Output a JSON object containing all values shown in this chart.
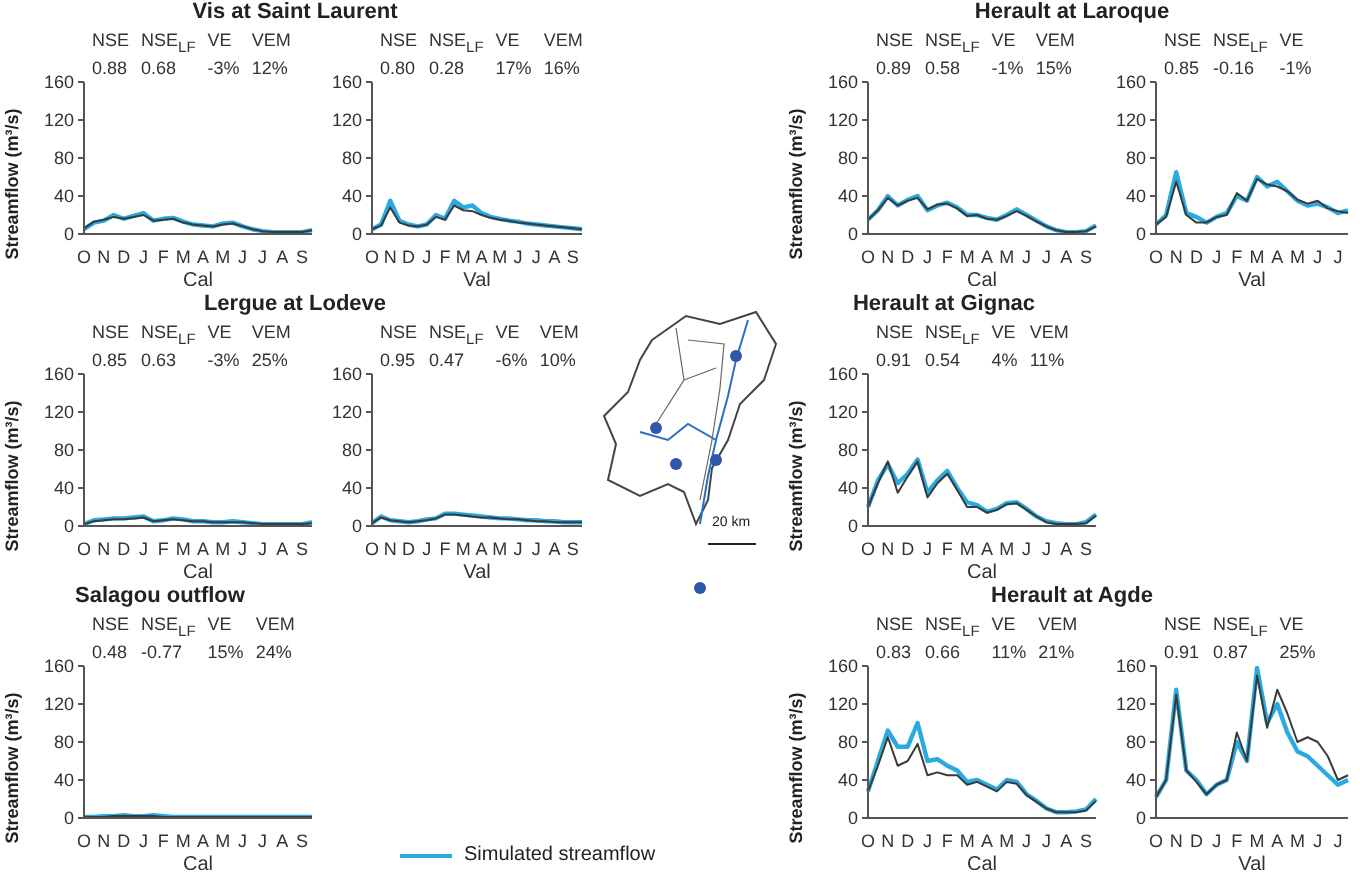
{
  "chart_data": [
    {
      "type": "line",
      "title": "Vis at Saint Laurent",
      "xlabel": "Cal",
      "ylabel": "Streamflow (m³/s)",
      "annotations": [
        "NSE",
        "NSE$_{LF}$",
        "VE",
        "VEM",
        "0.88",
        "0.68",
        "-3%",
        "12%"
      ],
      "categories": [
        "O",
        null,
        "N",
        null,
        "D",
        null,
        "J",
        null,
        "F",
        null,
        "M",
        null,
        "A",
        null,
        "M",
        null,
        "J",
        null,
        "J",
        null,
        "A",
        null,
        "S",
        null
      ],
      "ylim": [
        0,
        160
      ],
      "yticks": [
        0,
        40,
        80,
        120,
        160
      ],
      "series": [
        {
          "color": "#29abe2",
          "values": [
            5,
            12,
            14,
            20,
            16,
            19,
            22,
            14,
            16,
            17,
            13,
            10,
            9,
            8,
            11,
            12,
            8,
            5,
            3,
            2,
            2,
            2,
            2,
            4
          ]
        },
        {
          "color": "#3a3a3a",
          "values": [
            6,
            13,
            15,
            18,
            16,
            18,
            20,
            14,
            15,
            16,
            12,
            10,
            9,
            8,
            10,
            11,
            8,
            5,
            3,
            2,
            2,
            2,
            2,
            4
          ]
        }
      ]
    },
    {
      "type": "line",
      "xlabel": "Val",
      "annotations": [
        "NSE",
        "NSE$_{LF}$",
        "VE",
        "VEM",
        "0.80",
        "0.28",
        "17%",
        "16%"
      ],
      "categories": [
        "O",
        null,
        "N",
        null,
        "D",
        null,
        "J",
        null,
        "F",
        null,
        "M",
        null,
        "A",
        null,
        "M",
        null,
        "J",
        null,
        "J",
        null,
        "A",
        null,
        "S",
        null
      ],
      "ylim": [
        0,
        160
      ],
      "yticks": [
        0,
        40,
        80,
        120,
        160
      ],
      "series": [
        {
          "color": "#29abe2",
          "values": [
            5,
            10,
            35,
            14,
            10,
            8,
            10,
            20,
            16,
            35,
            28,
            30,
            22,
            18,
            16,
            14,
            13,
            11,
            10,
            9,
            8,
            7,
            6,
            5
          ]
        },
        {
          "color": "#3a3a3a",
          "values": [
            5,
            9,
            28,
            12,
            9,
            8,
            10,
            18,
            15,
            30,
            25,
            24,
            20,
            17,
            15,
            14,
            12,
            11,
            10,
            9,
            8,
            7,
            6,
            5
          ]
        }
      ]
    },
    {
      "type": "line",
      "title": "Herault at Laroque",
      "xlabel": "Cal",
      "ylabel": "Streamflow (m³/s)",
      "annotations": [
        "NSE",
        "NSE$_{LF}$",
        "VE",
        "VEM",
        "0.89",
        "0.58",
        "-1%",
        "15%"
      ],
      "categories": [
        "O",
        null,
        "N",
        null,
        "D",
        null,
        "J",
        null,
        "F",
        null,
        "M",
        null,
        "A",
        null,
        "M",
        null,
        "J",
        null,
        "J",
        null,
        "A",
        null,
        "S",
        null
      ],
      "ylim": [
        0,
        160
      ],
      "yticks": [
        0,
        40,
        80,
        120,
        160
      ],
      "series": [
        {
          "color": "#29abe2",
          "values": [
            15,
            25,
            40,
            30,
            36,
            40,
            25,
            30,
            33,
            28,
            20,
            20,
            17,
            15,
            20,
            26,
            20,
            14,
            8,
            4,
            2,
            2,
            3,
            9
          ]
        },
        {
          "color": "#3a3a3a",
          "values": [
            15,
            25,
            38,
            30,
            35,
            38,
            26,
            31,
            32,
            27,
            19,
            20,
            16,
            15,
            19,
            24,
            19,
            13,
            8,
            4,
            2,
            2,
            3,
            8
          ]
        }
      ]
    },
    {
      "type": "line",
      "xlabel": "Val",
      "annotations": [
        "NSE",
        "NSE$_{LF}$",
        "VE",
        "0.85",
        "-0.16",
        "-1%"
      ],
      "categories": [
        "O",
        null,
        "N",
        null,
        "D",
        null,
        "J",
        null,
        "F",
        null,
        "M",
        null,
        "A",
        null,
        "M",
        null,
        "J",
        null,
        "J",
        null
      ],
      "ylim": [
        0,
        160
      ],
      "yticks": [
        0,
        40,
        80,
        120,
        160
      ],
      "series": [
        {
          "color": "#29abe2",
          "values": [
            10,
            20,
            65,
            22,
            18,
            12,
            18,
            22,
            40,
            35,
            60,
            50,
            55,
            45,
            35,
            30,
            32,
            28,
            22,
            25
          ]
        },
        {
          "color": "#3a3a3a",
          "values": [
            10,
            18,
            55,
            20,
            12,
            12,
            18,
            20,
            43,
            35,
            58,
            52,
            50,
            45,
            36,
            32,
            35,
            27,
            24,
            22
          ]
        }
      ]
    },
    {
      "type": "line",
      "title": "Lergue at Lodeve",
      "xlabel": "Cal",
      "ylabel": "Streamflow (m³/s)",
      "annotations": [
        "NSE",
        "NSE$_{LF}$",
        "VE",
        "VEM",
        "0.85",
        "0.63",
        "-3%",
        "25%"
      ],
      "categories": [
        "O",
        null,
        "N",
        null,
        "D",
        null,
        "J",
        null,
        "F",
        null,
        "M",
        null,
        "A",
        null,
        "M",
        null,
        "J",
        null,
        "J",
        null,
        "A",
        null,
        "S",
        null
      ],
      "ylim": [
        0,
        160
      ],
      "yticks": [
        0,
        40,
        80,
        120,
        160
      ],
      "series": [
        {
          "color": "#29abe2",
          "values": [
            2,
            6,
            7,
            8,
            8,
            9,
            10,
            5,
            6,
            8,
            7,
            5,
            5,
            4,
            4,
            5,
            4,
            3,
            2,
            2,
            2,
            2,
            2,
            4
          ]
        },
        {
          "color": "#3a3a3a",
          "values": [
            2,
            5,
            6,
            7,
            7,
            8,
            9,
            5,
            6,
            7,
            6,
            5,
            5,
            4,
            4,
            4,
            4,
            3,
            2,
            2,
            2,
            2,
            2,
            3
          ]
        }
      ]
    },
    {
      "type": "line",
      "xlabel": "Val",
      "annotations": [
        "NSE",
        "NSE$_{LF}$",
        "VE",
        "VEM",
        "0.95",
        "0.47",
        "-6%",
        "10%"
      ],
      "categories": [
        "O",
        null,
        "N",
        null,
        "D",
        null,
        "J",
        null,
        "F",
        null,
        "M",
        null,
        "A",
        null,
        "M",
        null,
        "J",
        null,
        "J",
        null,
        "A",
        null,
        "S",
        null
      ],
      "ylim": [
        0,
        160
      ],
      "yticks": [
        0,
        40,
        80,
        120,
        160
      ],
      "series": [
        {
          "color": "#29abe2",
          "values": [
            3,
            10,
            6,
            5,
            4,
            5,
            7,
            8,
            13,
            13,
            12,
            11,
            10,
            9,
            8,
            8,
            7,
            6,
            6,
            5,
            5,
            4,
            4,
            4
          ]
        },
        {
          "color": "#3a3a3a",
          "values": [
            3,
            9,
            6,
            5,
            4,
            5,
            6,
            8,
            12,
            12,
            11,
            10,
            9,
            9,
            8,
            7,
            7,
            6,
            5,
            5,
            4,
            4,
            4,
            4
          ]
        }
      ]
    },
    {
      "type": "line",
      "title": "Herault at Gignac",
      "xlabel": "Cal",
      "ylabel": "Streamflow (m³/s)",
      "annotations": [
        "NSE",
        "NSE$_{LF}$",
        "VE",
        "VEM",
        "0.91",
        "0.54",
        "4%",
        "11%"
      ],
      "categories": [
        "O",
        null,
        "N",
        null,
        "D",
        null,
        "J",
        null,
        "F",
        null,
        "M",
        null,
        "A",
        null,
        "M",
        null,
        "J",
        null,
        "J",
        null,
        "A",
        null,
        "S",
        null
      ],
      "ylim": [
        0,
        160
      ],
      "yticks": [
        0,
        40,
        80,
        120,
        160
      ],
      "series": [
        {
          "color": "#29abe2",
          "values": [
            20,
            48,
            65,
            45,
            55,
            70,
            35,
            48,
            58,
            40,
            25,
            22,
            15,
            18,
            24,
            25,
            18,
            10,
            5,
            3,
            2,
            2,
            4,
            12
          ]
        },
        {
          "color": "#3a3a3a",
          "values": [
            20,
            45,
            68,
            35,
            52,
            68,
            30,
            45,
            55,
            38,
            20,
            20,
            14,
            17,
            23,
            24,
            17,
            10,
            4,
            2,
            2,
            2,
            3,
            11
          ]
        }
      ]
    },
    {
      "type": "line",
      "title": "Salagou outflow",
      "xlabel": "Cal",
      "ylabel": "Streamflow (m³/s)",
      "legend": "bottom",
      "annotations": [
        "NSE",
        "NSE$_{LF}$",
        "VE",
        "VEM",
        "0.48",
        "-0.77",
        "15%",
        "24%"
      ],
      "categories": [
        "O",
        null,
        "N",
        null,
        "D",
        null,
        "J",
        null,
        "F",
        null,
        "M",
        null,
        "A",
        null,
        "M",
        null,
        "J",
        null,
        "J",
        null,
        "A",
        null,
        "S",
        null
      ],
      "ylim": [
        0,
        160
      ],
      "yticks": [
        0,
        40,
        80,
        120,
        160
      ],
      "series": [
        {
          "name": "Simulated streamflow",
          "color": "#29abe2",
          "values": [
            1,
            1,
            2,
            2,
            3,
            2,
            2,
            3,
            2,
            1,
            1,
            1,
            1,
            1,
            1,
            1,
            1,
            1,
            1,
            1,
            1,
            1,
            1,
            1
          ]
        },
        {
          "color": "#3a3a3a",
          "values": [
            1,
            1,
            1,
            2,
            2,
            2,
            2,
            2,
            1,
            1,
            1,
            1,
            1,
            1,
            1,
            1,
            1,
            1,
            1,
            1,
            1,
            1,
            1,
            1
          ]
        }
      ]
    },
    {
      "type": "line",
      "title": "Herault at Agde",
      "xlabel": "Cal",
      "ylabel": "Streamflow (m³/s)",
      "annotations": [
        "NSE",
        "NSE$_{LF}$",
        "VE",
        "VEM",
        "0.83",
        "0.66",
        "11%",
        "21%"
      ],
      "categories": [
        "O",
        null,
        "N",
        null,
        "D",
        null,
        "J",
        null,
        "F",
        null,
        "M",
        null,
        "A",
        null,
        "M",
        null,
        "J",
        null,
        "J",
        null,
        "A",
        null,
        "S",
        null
      ],
      "ylim": [
        0,
        160
      ],
      "yticks": [
        0,
        40,
        80,
        120,
        160
      ],
      "series": [
        {
          "color": "#29abe2",
          "values": [
            28,
            60,
            92,
            75,
            75,
            100,
            60,
            62,
            55,
            50,
            38,
            40,
            35,
            30,
            40,
            38,
            25,
            18,
            10,
            6,
            6,
            7,
            9,
            20
          ]
        },
        {
          "color": "#3a3a3a",
          "values": [
            28,
            55,
            85,
            55,
            60,
            78,
            45,
            48,
            45,
            45,
            35,
            38,
            33,
            28,
            38,
            36,
            24,
            17,
            10,
            6,
            6,
            6,
            8,
            18
          ]
        }
      ]
    },
    {
      "type": "line",
      "xlabel": "Val",
      "annotations": [
        "NSE",
        "NSE$_{LF}$",
        "VE",
        "0.91",
        "0.87",
        "25%"
      ],
      "categories": [
        "O",
        null,
        "N",
        null,
        "D",
        null,
        "J",
        null,
        "F",
        null,
        "M",
        null,
        "A",
        null,
        "M",
        null,
        "J",
        null,
        "J",
        null
      ],
      "ylim": [
        0,
        160
      ],
      "yticks": [
        0,
        40,
        80,
        120,
        160
      ],
      "series": [
        {
          "color": "#29abe2",
          "values": [
            22,
            40,
            135,
            50,
            40,
            25,
            35,
            40,
            80,
            60,
            158,
            100,
            120,
            90,
            70,
            65,
            55,
            45,
            35,
            40
          ]
        },
        {
          "color": "#3a3a3a",
          "values": [
            22,
            40,
            130,
            50,
            38,
            25,
            35,
            40,
            90,
            60,
            150,
            95,
            135,
            110,
            80,
            85,
            80,
            65,
            40,
            45
          ]
        }
      ]
    },
    {
      "type": "other",
      "annotations": [
        "20 km"
      ]
    }
  ]
}
